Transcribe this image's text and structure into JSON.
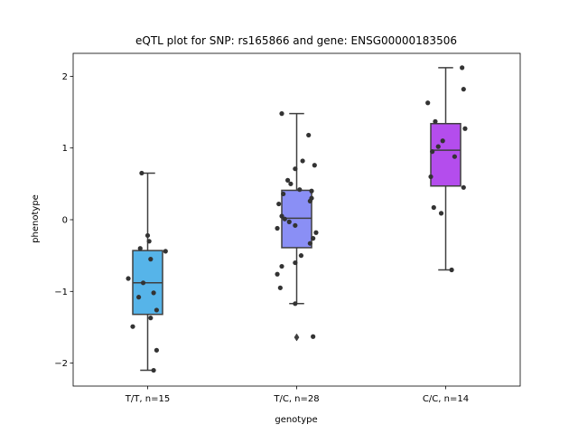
{
  "chart_data": {
    "type": "box",
    "title": "eQTL plot for SNP: rs165866 and gene: ENSG00000183506",
    "xlabel": "genotype",
    "ylabel": "phenotype",
    "ylim": [
      -2.32,
      2.32
    ],
    "yticks": [
      -2,
      -1,
      0,
      1,
      2
    ],
    "yticks_labels": [
      "−2",
      "−1",
      "0",
      "1",
      "2"
    ],
    "grid": false,
    "groups": [
      {
        "label": "T/T, n=15",
        "color": "#56b4e9",
        "stats": {
          "whisker_low": -2.1,
          "q1": -1.32,
          "median": -0.88,
          "q3": -0.43,
          "whisker_high": 0.65
        },
        "outliers": [],
        "points": [
          {
            "dx": -0.04,
            "y": 0.65
          },
          {
            "dx": 0.0,
            "y": -0.22
          },
          {
            "dx": 0.01,
            "y": -0.3
          },
          {
            "dx": -0.05,
            "y": -0.4
          },
          {
            "dx": 0.12,
            "y": -0.44
          },
          {
            "dx": 0.02,
            "y": -0.55
          },
          {
            "dx": -0.13,
            "y": -0.82
          },
          {
            "dx": -0.03,
            "y": -0.88
          },
          {
            "dx": 0.04,
            "y": -1.02
          },
          {
            "dx": -0.06,
            "y": -1.08
          },
          {
            "dx": 0.06,
            "y": -1.26
          },
          {
            "dx": 0.02,
            "y": -1.37
          },
          {
            "dx": -0.1,
            "y": -1.49
          },
          {
            "dx": 0.06,
            "y": -1.82
          },
          {
            "dx": 0.04,
            "y": -2.1
          }
        ]
      },
      {
        "label": "T/C, n=28",
        "color": "#8a8ff5",
        "stats": {
          "whisker_low": -1.17,
          "q1": -0.39,
          "median": 0.02,
          "q3": 0.41,
          "whisker_high": 1.48
        },
        "outliers": [
          -1.64
        ],
        "points": [
          {
            "dx": -0.1,
            "y": 1.48
          },
          {
            "dx": 0.08,
            "y": 1.18
          },
          {
            "dx": 0.04,
            "y": 0.82
          },
          {
            "dx": 0.12,
            "y": 0.76
          },
          {
            "dx": -0.01,
            "y": 0.71
          },
          {
            "dx": -0.06,
            "y": 0.55
          },
          {
            "dx": -0.04,
            "y": 0.5
          },
          {
            "dx": 0.02,
            "y": 0.42
          },
          {
            "dx": 0.1,
            "y": 0.4
          },
          {
            "dx": -0.09,
            "y": 0.36
          },
          {
            "dx": 0.1,
            "y": 0.3
          },
          {
            "dx": 0.09,
            "y": 0.26
          },
          {
            "dx": -0.12,
            "y": 0.22
          },
          {
            "dx": -0.1,
            "y": 0.05
          },
          {
            "dx": -0.08,
            "y": 0.01
          },
          {
            "dx": -0.05,
            "y": -0.03
          },
          {
            "dx": -0.01,
            "y": -0.08
          },
          {
            "dx": -0.13,
            "y": -0.12
          },
          {
            "dx": 0.13,
            "y": -0.18
          },
          {
            "dx": 0.11,
            "y": -0.26
          },
          {
            "dx": 0.09,
            "y": -0.33
          },
          {
            "dx": 0.03,
            "y": -0.5
          },
          {
            "dx": -0.01,
            "y": -0.6
          },
          {
            "dx": -0.1,
            "y": -0.65
          },
          {
            "dx": -0.13,
            "y": -0.76
          },
          {
            "dx": -0.11,
            "y": -0.95
          },
          {
            "dx": -0.01,
            "y": -1.17
          },
          {
            "dx": 0.11,
            "y": -1.63
          }
        ]
      },
      {
        "label": "C/C, n=14",
        "color": "#b44ded",
        "stats": {
          "whisker_low": -0.7,
          "q1": 0.47,
          "median": 0.97,
          "q3": 1.34,
          "whisker_high": 2.12
        },
        "outliers": [],
        "points": [
          {
            "dx": 0.11,
            "y": 2.12
          },
          {
            "dx": 0.12,
            "y": 1.82
          },
          {
            "dx": -0.12,
            "y": 1.63
          },
          {
            "dx": -0.07,
            "y": 1.37
          },
          {
            "dx": 0.13,
            "y": 1.27
          },
          {
            "dx": -0.02,
            "y": 1.1
          },
          {
            "dx": -0.05,
            "y": 1.02
          },
          {
            "dx": -0.09,
            "y": 0.95
          },
          {
            "dx": 0.06,
            "y": 0.88
          },
          {
            "dx": -0.1,
            "y": 0.6
          },
          {
            "dx": 0.12,
            "y": 0.45
          },
          {
            "dx": -0.08,
            "y": 0.17
          },
          {
            "dx": -0.03,
            "y": 0.09
          },
          {
            "dx": 0.04,
            "y": -0.7
          }
        ]
      }
    ]
  }
}
